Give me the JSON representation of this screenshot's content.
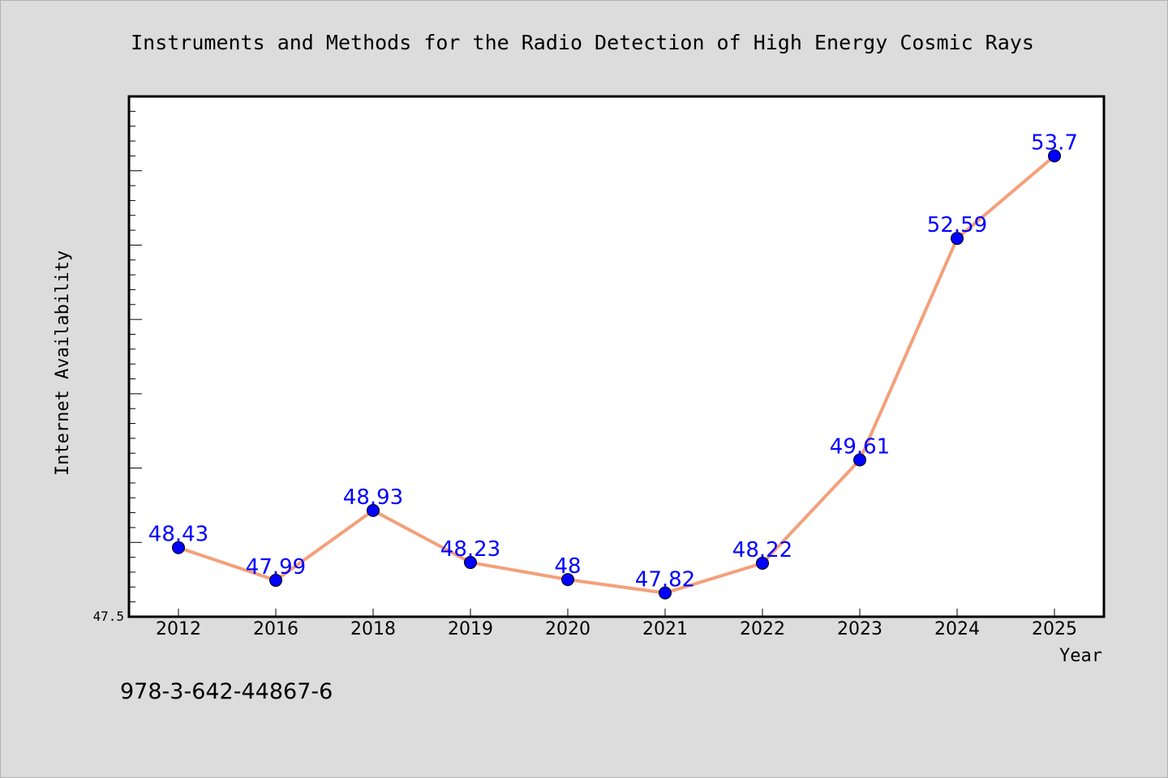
{
  "chart_data": {
    "type": "line",
    "title": "Instruments and Methods for the Radio Detection of High Energy Cosmic Rays",
    "xlabel": "Year",
    "ylabel": "Internet Availability",
    "categories": [
      "2012",
      "2016",
      "2018",
      "2019",
      "2020",
      "2021",
      "2022",
      "2023",
      "2024",
      "2025"
    ],
    "series": [
      {
        "values": [
          48.43,
          47.99,
          48.93,
          48.23,
          48,
          47.82,
          48.22,
          49.61,
          52.59,
          53.7
        ],
        "data_labels": [
          "48.43",
          "47.99",
          "48.93",
          "48.23",
          "48",
          "47.82",
          "48.22",
          "49.61",
          "52.59",
          "53.7"
        ]
      }
    ],
    "ylim": [
      47.5,
      54.5
    ],
    "ytick_label": "47.5",
    "grid": false,
    "colors": {
      "line": "#f4a07a",
      "marker": "#0000ff",
      "data_label": "#0000ff",
      "background": "#dcdcdc",
      "plot_background": "#ffffff"
    }
  },
  "annotation": "978-3-642-44867-6"
}
